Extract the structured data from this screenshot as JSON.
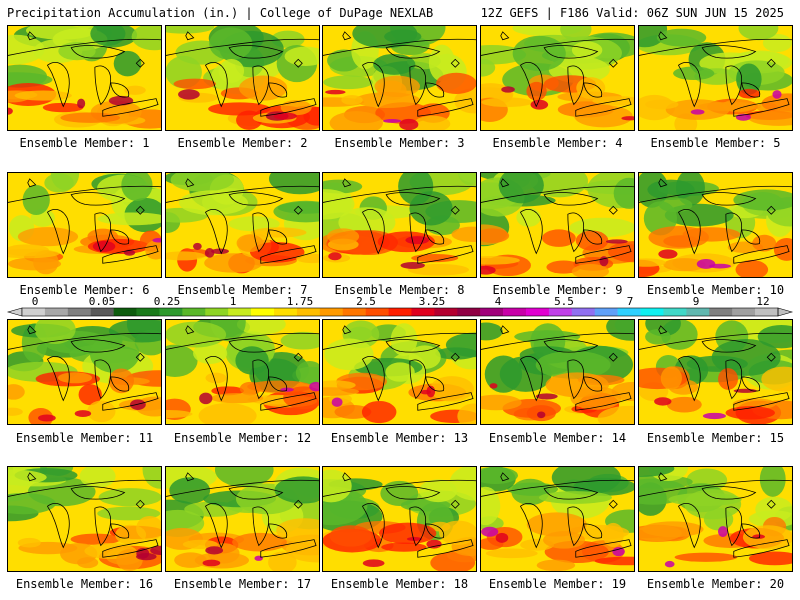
{
  "header": {
    "left": "Precipitation Accumulation (in.) | College of DuPage NEXLAB",
    "right": "12Z GEFS | F186 Valid: 06Z SUN JUN 15 2025"
  },
  "members": [
    "Ensemble Member: 1",
    "Ensemble Member: 2",
    "Ensemble Member: 3",
    "Ensemble Member: 4",
    "Ensemble Member: 5",
    "Ensemble Member: 6",
    "Ensemble Member: 7",
    "Ensemble Member: 8",
    "Ensemble Member: 9",
    "Ensemble Member: 10",
    "Ensemble Member: 11",
    "Ensemble Member: 12",
    "Ensemble Member: 13",
    "Ensemble Member: 14",
    "Ensemble Member: 15",
    "Ensemble Member: 16",
    "Ensemble Member: 17",
    "Ensemble Member: 18",
    "Ensemble Member: 19",
    "Ensemble Member: 20"
  ],
  "colorbar": {
    "labels": [
      "0",
      "0.05",
      "0.25",
      "1",
      "1.75",
      "2.5",
      "3.25",
      "4",
      "5.5",
      "7",
      "9",
      "12"
    ],
    "colors": [
      "#d0d0d0",
      "#a8a8a8",
      "#808080",
      "#5a5a5a",
      "#0d5c0d",
      "#1a7a1a",
      "#2e9a2e",
      "#5ab82a",
      "#8ed424",
      "#c8ec1e",
      "#ffff00",
      "#ffde00",
      "#ffbe00",
      "#ff9a00",
      "#ff7600",
      "#ff4e00",
      "#ff1e00",
      "#e0001e",
      "#b40030",
      "#900044",
      "#a0007a",
      "#c800a8",
      "#e000d0",
      "#c040e8",
      "#9070f0",
      "#60a0f8",
      "#30d0ff",
      "#10f0f0",
      "#40d8c8",
      "#60b8b0",
      "#808080",
      "#a0a0a0",
      "#c0c0c0"
    ]
  }
}
